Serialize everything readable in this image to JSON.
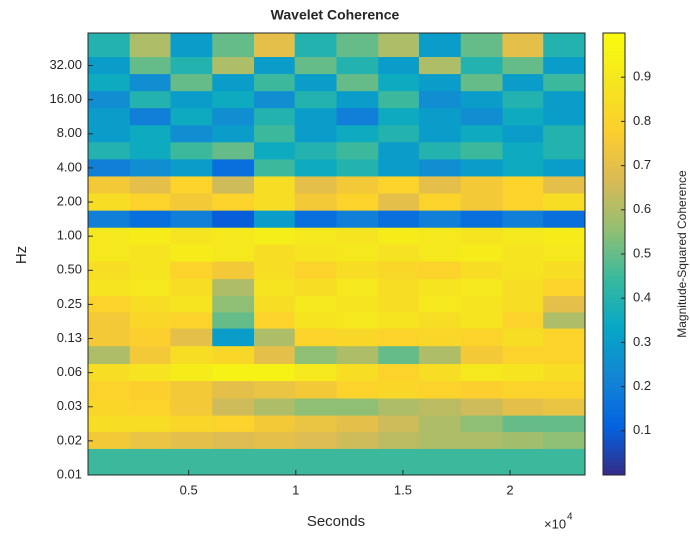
{
  "chart_data": {
    "type": "heatmap",
    "title": "Wavelet Coherence",
    "xlabel": "Seconds",
    "ylabel": "Hz",
    "x_multiplier": "×10",
    "x_multiplier_exponent": "4",
    "xlim": [
      0.03,
      2.35
    ],
    "xticks": [
      0.5,
      1,
      1.5,
      2
    ],
    "ylim": [
      0.0078125,
      62
    ],
    "yscale": "log",
    "yticks": [
      {
        "value": 32,
        "label": "32.00"
      },
      {
        "value": 16,
        "label": "16.00"
      },
      {
        "value": 8,
        "label": "8.00"
      },
      {
        "value": 4,
        "label": "4.00"
      },
      {
        "value": 2,
        "label": "2.00"
      },
      {
        "value": 1,
        "label": "1.00"
      },
      {
        "value": 0.5,
        "label": "0.50"
      },
      {
        "value": 0.25,
        "label": "0.25"
      },
      {
        "value": 0.125,
        "label": "0.13"
      },
      {
        "value": 0.0625,
        "label": "0.06"
      },
      {
        "value": 0.03125,
        "label": "0.03"
      },
      {
        "value": 0.015625,
        "label": "0.02"
      },
      {
        "value": 0.0078125,
        "label": "0.01"
      }
    ],
    "x": [
      0.13,
      0.32,
      0.51,
      0.71,
      0.9,
      1.09,
      1.29,
      1.48,
      1.67,
      1.87,
      2.06,
      2.25
    ],
    "y": [
      45.25,
      32,
      22.63,
      16,
      11.31,
      8,
      5.66,
      4,
      2.83,
      2,
      1.41,
      1,
      0.71,
      0.5,
      0.35,
      0.25,
      0.18,
      0.13,
      0.088,
      0.063,
      0.044,
      0.031,
      0.022,
      0.016,
      0.011
    ],
    "z": [
      [
        0.4,
        0.6,
        0.3,
        0.5,
        0.7,
        0.4,
        0.5,
        0.6,
        0.3,
        0.5,
        0.7,
        0.4
      ],
      [
        0.3,
        0.5,
        0.4,
        0.6,
        0.3,
        0.5,
        0.4,
        0.3,
        0.6,
        0.4,
        0.5,
        0.3
      ],
      [
        0.35,
        0.25,
        0.5,
        0.3,
        0.45,
        0.3,
        0.5,
        0.35,
        0.3,
        0.5,
        0.3,
        0.45
      ],
      [
        0.25,
        0.4,
        0.3,
        0.35,
        0.25,
        0.4,
        0.3,
        0.45,
        0.25,
        0.3,
        0.4,
        0.3
      ],
      [
        0.3,
        0.2,
        0.35,
        0.25,
        0.4,
        0.3,
        0.2,
        0.35,
        0.3,
        0.25,
        0.35,
        0.3
      ],
      [
        0.3,
        0.35,
        0.25,
        0.3,
        0.45,
        0.3,
        0.35,
        0.4,
        0.3,
        0.35,
        0.3,
        0.4
      ],
      [
        0.4,
        0.35,
        0.45,
        0.5,
        0.35,
        0.4,
        0.45,
        0.3,
        0.4,
        0.45,
        0.35,
        0.4
      ],
      [
        0.2,
        0.25,
        0.3,
        0.15,
        0.45,
        0.35,
        0.4,
        0.3,
        0.25,
        0.3,
        0.35,
        0.3
      ],
      [
        0.75,
        0.7,
        0.8,
        0.65,
        0.85,
        0.7,
        0.75,
        0.8,
        0.7,
        0.75,
        0.8,
        0.7
      ],
      [
        0.85,
        0.8,
        0.75,
        0.8,
        0.85,
        0.75,
        0.8,
        0.7,
        0.8,
        0.75,
        0.8,
        0.85
      ],
      [
        0.2,
        0.15,
        0.2,
        0.1,
        0.3,
        0.15,
        0.2,
        0.15,
        0.2,
        0.15,
        0.2,
        0.15
      ],
      [
        0.9,
        0.92,
        0.88,
        0.9,
        0.93,
        0.9,
        0.88,
        0.92,
        0.9,
        0.88,
        0.9,
        0.92
      ],
      [
        0.9,
        0.88,
        0.92,
        0.9,
        0.85,
        0.88,
        0.9,
        0.87,
        0.9,
        0.92,
        0.88,
        0.9
      ],
      [
        0.85,
        0.88,
        0.8,
        0.75,
        0.85,
        0.8,
        0.85,
        0.82,
        0.8,
        0.85,
        0.88,
        0.85
      ],
      [
        0.88,
        0.9,
        0.85,
        0.6,
        0.88,
        0.85,
        0.9,
        0.85,
        0.88,
        0.9,
        0.85,
        0.8
      ],
      [
        0.8,
        0.85,
        0.88,
        0.55,
        0.85,
        0.9,
        0.88,
        0.85,
        0.9,
        0.88,
        0.85,
        0.7
      ],
      [
        0.75,
        0.82,
        0.8,
        0.5,
        0.8,
        0.88,
        0.9,
        0.88,
        0.85,
        0.88,
        0.8,
        0.6
      ],
      [
        0.75,
        0.78,
        0.7,
        0.3,
        0.6,
        0.8,
        0.82,
        0.8,
        0.82,
        0.8,
        0.85,
        0.8
      ],
      [
        0.6,
        0.75,
        0.85,
        0.82,
        0.7,
        0.55,
        0.6,
        0.5,
        0.6,
        0.75,
        0.8,
        0.8
      ],
      [
        0.85,
        0.88,
        0.92,
        0.95,
        0.95,
        0.9,
        0.85,
        0.8,
        0.85,
        0.9,
        0.88,
        0.85
      ],
      [
        0.8,
        0.78,
        0.75,
        0.7,
        0.72,
        0.75,
        0.8,
        0.82,
        0.8,
        0.78,
        0.8,
        0.8
      ],
      [
        0.82,
        0.8,
        0.75,
        0.65,
        0.6,
        0.55,
        0.55,
        0.6,
        0.62,
        0.65,
        0.7,
        0.72
      ],
      [
        0.85,
        0.85,
        0.82,
        0.8,
        0.75,
        0.72,
        0.7,
        0.65,
        0.6,
        0.55,
        0.5,
        0.5
      ],
      [
        0.75,
        0.72,
        0.7,
        0.68,
        0.7,
        0.68,
        0.65,
        0.62,
        0.6,
        0.6,
        0.58,
        0.55
      ],
      [
        0.45,
        0.45,
        0.45,
        0.45,
        0.45,
        0.45,
        0.45,
        0.45,
        0.45,
        0.45,
        0.45,
        0.45
      ]
    ],
    "colorbar_label": "Magnitude-Squared Coherence",
    "clim": [
      0,
      1
    ],
    "cticks": [
      0.1,
      0.2,
      0.3,
      0.4,
      0.5,
      0.6,
      0.7,
      0.8,
      0.9
    ],
    "colormap": [
      "#352a87",
      "#0363e1",
      "#1485d4",
      "#06a7c6",
      "#38b99e",
      "#92bf73",
      "#d9ba56",
      "#fcce2e",
      "#f5e61f",
      "#f9fb0e"
    ]
  }
}
